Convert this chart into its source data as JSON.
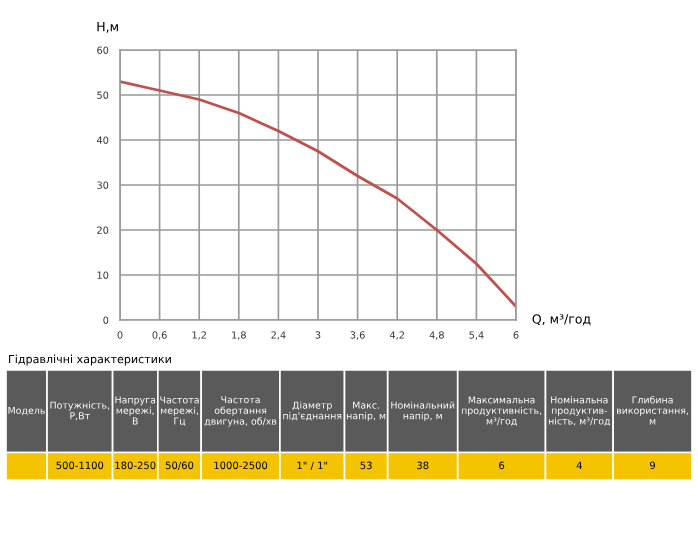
{
  "chart_data": {
    "type": "line",
    "xlabel": "Q, м³/год",
    "ylabel": "H,м",
    "x": [
      0,
      0.6,
      1.2,
      1.8,
      2.4,
      3.0,
      3.6,
      4.2,
      4.8,
      5.4,
      6.0
    ],
    "series": [
      {
        "color": "#c0504d",
        "values": [
          53,
          51,
          49,
          46,
          42,
          37.5,
          32,
          27,
          20,
          12.5,
          3
        ]
      }
    ],
    "xlim": [
      0,
      6
    ],
    "xticks": [
      0,
      {
        "value": 0.6,
        "label": "0,6"
      },
      {
        "value": 1.2,
        "label": "1,2"
      },
      {
        "value": 1.8,
        "label": "1,8"
      },
      {
        "value": 2.4,
        "label": "2,4"
      },
      3,
      {
        "value": 3.6,
        "label": "3,6"
      },
      {
        "value": 4.2,
        "label": "4,2"
      },
      {
        "value": 4.8,
        "label": "4,8"
      },
      {
        "value": 5.4,
        "label": "5,4"
      },
      6
    ],
    "ylim": [
      0,
      60
    ],
    "yticks": [
      0,
      10,
      20,
      30,
      40,
      50,
      60
    ],
    "grid": true,
    "annotations": [
      "Гідравлічні характеристики",
      "Модель",
      "Потужність,\nР,Вт",
      "Напруга\nмережі,\nВ",
      "Частота\nмережі,\nГц",
      "Частота\nобертання\nдвигуна, об/хв",
      "Діаметр\nпід'єднання",
      "Макс.\nнапір, м",
      "Номінальний\nнапір, м",
      "Максимальна\nпродуктивність,\nм³/год",
      "Номінальна\nпродуктив-\nність, м³/год",
      "Глибина\nвикористання,\nм",
      "500-1100",
      "180-250",
      "50/60",
      "1000-2500",
      "1\" / 1\"",
      "53",
      "38",
      "6",
      "4",
      "9"
    ]
  }
}
